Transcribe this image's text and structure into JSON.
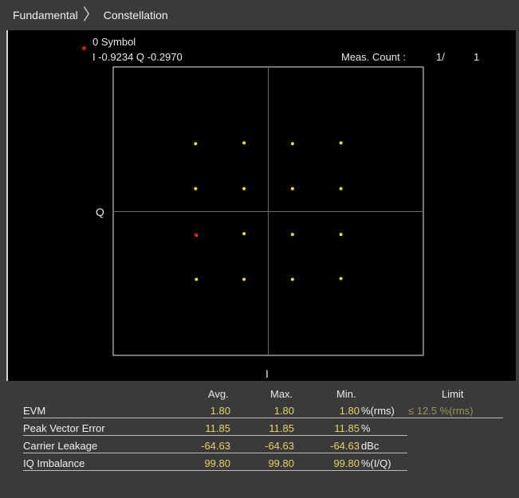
{
  "header": {
    "crumb1": "Fundamental",
    "crumb2": "Constellation"
  },
  "plot": {
    "symbol_label": "0 Symbol",
    "iq_readout": "I -0.9234 Q -0.2970",
    "meas_count_label": "Meas. Count :",
    "meas_count_value": "1/",
    "meas_count_total": "1",
    "axis_q": "Q",
    "axis_i": "I",
    "marker_color": "#e01818",
    "point_color": "#f0e020"
  },
  "chart_data": {
    "type": "scatter",
    "xlabel": "I",
    "ylabel": "Q",
    "grid": true,
    "points": [
      {
        "i": -0.93,
        "q": 0.86
      },
      {
        "i": -0.31,
        "q": 0.87
      },
      {
        "i": 0.31,
        "q": 0.86
      },
      {
        "i": 0.93,
        "q": 0.87
      },
      {
        "i": -0.93,
        "q": 0.29
      },
      {
        "i": -0.31,
        "q": 0.29
      },
      {
        "i": 0.31,
        "q": 0.29
      },
      {
        "i": 0.93,
        "q": 0.29
      },
      {
        "i": -0.92,
        "q": -0.3
      },
      {
        "i": -0.31,
        "q": -0.28
      },
      {
        "i": 0.31,
        "q": -0.29
      },
      {
        "i": 0.93,
        "q": -0.29
      },
      {
        "i": -0.92,
        "q": -0.86
      },
      {
        "i": -0.31,
        "q": -0.86
      },
      {
        "i": 0.31,
        "q": -0.86
      },
      {
        "i": 0.93,
        "q": -0.85
      }
    ],
    "marker": {
      "i": -0.9234,
      "q": -0.297
    }
  },
  "results": {
    "headers": {
      "avg": "Avg.",
      "max": "Max.",
      "min": "Min.",
      "limit": "Limit"
    },
    "rows": [
      {
        "label": "EVM",
        "avg": "1.80",
        "max": "1.80",
        "min": "1.80",
        "unit": "%(rms)",
        "limit": "≤ 12.5 %(rms)"
      },
      {
        "label": "Peak Vector Error",
        "avg": "11.85",
        "max": "11.85",
        "min": "11.85",
        "unit": "%",
        "limit": ""
      },
      {
        "label": "Carrier Leakage",
        "avg": "-64.63",
        "max": "-64.63",
        "min": "-64.63",
        "unit": "dBc",
        "limit": ""
      },
      {
        "label": "IQ Imbalance",
        "avg": "99.80",
        "max": "99.80",
        "min": "99.80",
        "unit": "%(I/Q)",
        "limit": ""
      }
    ]
  }
}
